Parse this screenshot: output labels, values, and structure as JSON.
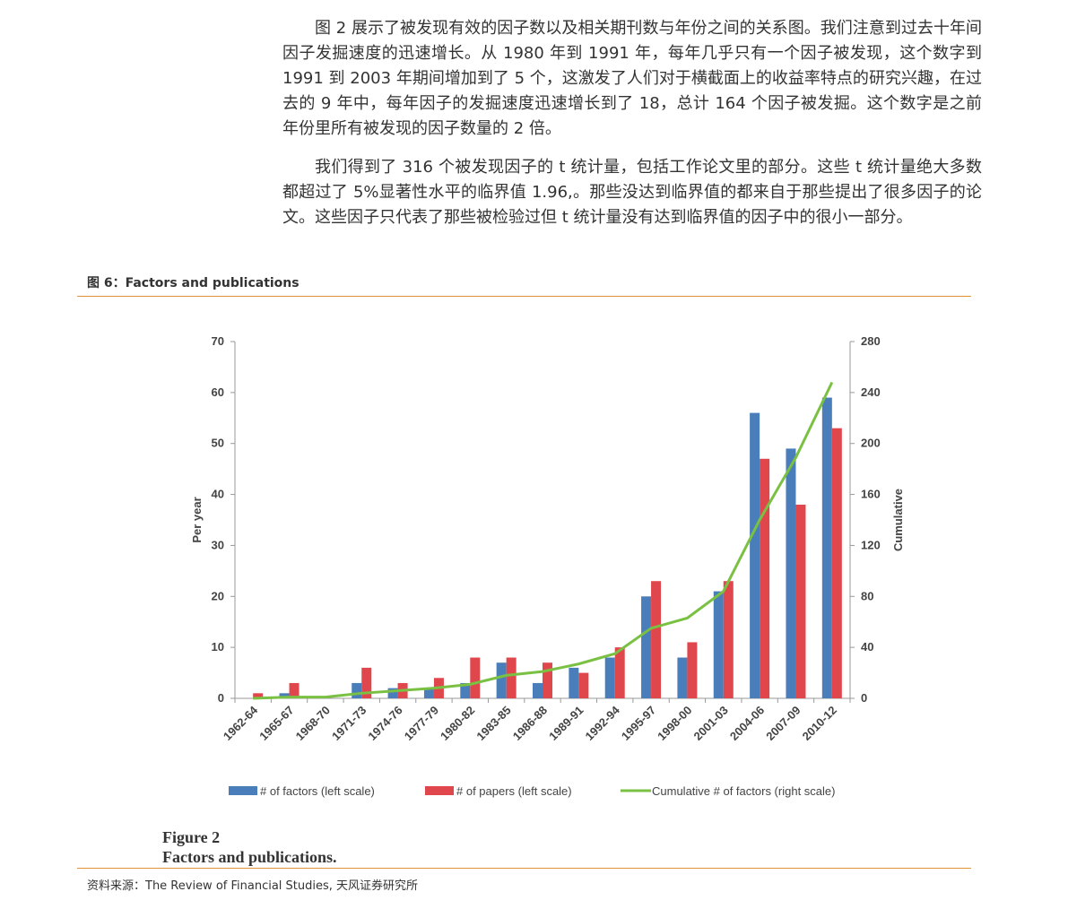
{
  "paragraphs": [
    "图 2 展示了被发现有效的因子数以及相关期刊数与年份之间的关系图。我们注意到过去十年间因子发掘速度的迅速增长。从 1980 年到 1991 年，每年几乎只有一个因子被发现，这个数字到 1991 到 2003 年期间增加到了 5 个，这激发了人们对于横截面上的收益率特点的研究兴趣，在过去的 9 年中，每年因子的发掘速度迅速增长到了 18，总计 164 个因子被发掘。这个数字是之前年份里所有被发现的因子数量的 2 倍。",
    "我们得到了 316 个被发现因子的 t 统计量，包括工作论文里的部分。这些 t 统计量绝大多数都超过了 5%显著性水平的临界值 1.96,。那些没达到临界值的都来自于那些提出了很多因子的论文。这些因子只代表了那些被检验过但 t 统计量没有达到临界值的因子中的很小一部分。"
  ],
  "figure_label": "图 6：Factors and publications",
  "chart_data": {
    "type": "bar",
    "categories": [
      "1962-64",
      "1965-67",
      "1968-70",
      "1971-73",
      "1974-76",
      "1977-79",
      "1980-82",
      "1983-85",
      "1986-88",
      "1989-91",
      "1992-94",
      "1995-97",
      "1998-00",
      "2001-03",
      "2004-06",
      "2007-09",
      "2010-12"
    ],
    "series": [
      {
        "name": "# of factors (left scale)",
        "color": "#4a7ebb",
        "type": "bar",
        "values": [
          0,
          1,
          0,
          3,
          2,
          2,
          3,
          7,
          3,
          6,
          8,
          20,
          8,
          21,
          56,
          49,
          59
        ]
      },
      {
        "name": "# of papers (left scale)",
        "color": "#e0474c",
        "type": "bar",
        "values": [
          1,
          3,
          0,
          6,
          3,
          4,
          8,
          8,
          7,
          5,
          10,
          23,
          11,
          23,
          47,
          38,
          53
        ]
      },
      {
        "name": "Cumulative # of factors (right scale)",
        "color": "#7ac143",
        "type": "line",
        "axis": "y2",
        "values": [
          0,
          1,
          1,
          4,
          6,
          8,
          11,
          18,
          21,
          27,
          35,
          55,
          63,
          84,
          140,
          189,
          248
        ]
      }
    ],
    "ylabel": "Per year",
    "y2label": "Cumulative",
    "ylim": [
      0,
      70
    ],
    "yticks": [
      0,
      10,
      20,
      30,
      40,
      50,
      60,
      70
    ],
    "y2lim": [
      0,
      280
    ],
    "y2ticks": [
      0,
      40,
      80,
      120,
      160,
      200,
      240,
      280
    ],
    "grid": false,
    "legend": "bottom"
  },
  "caption": [
    "Figure 2",
    "Factors and publications."
  ],
  "source": "资料来源：The Review of Financial Studies, 天风证券研究所"
}
